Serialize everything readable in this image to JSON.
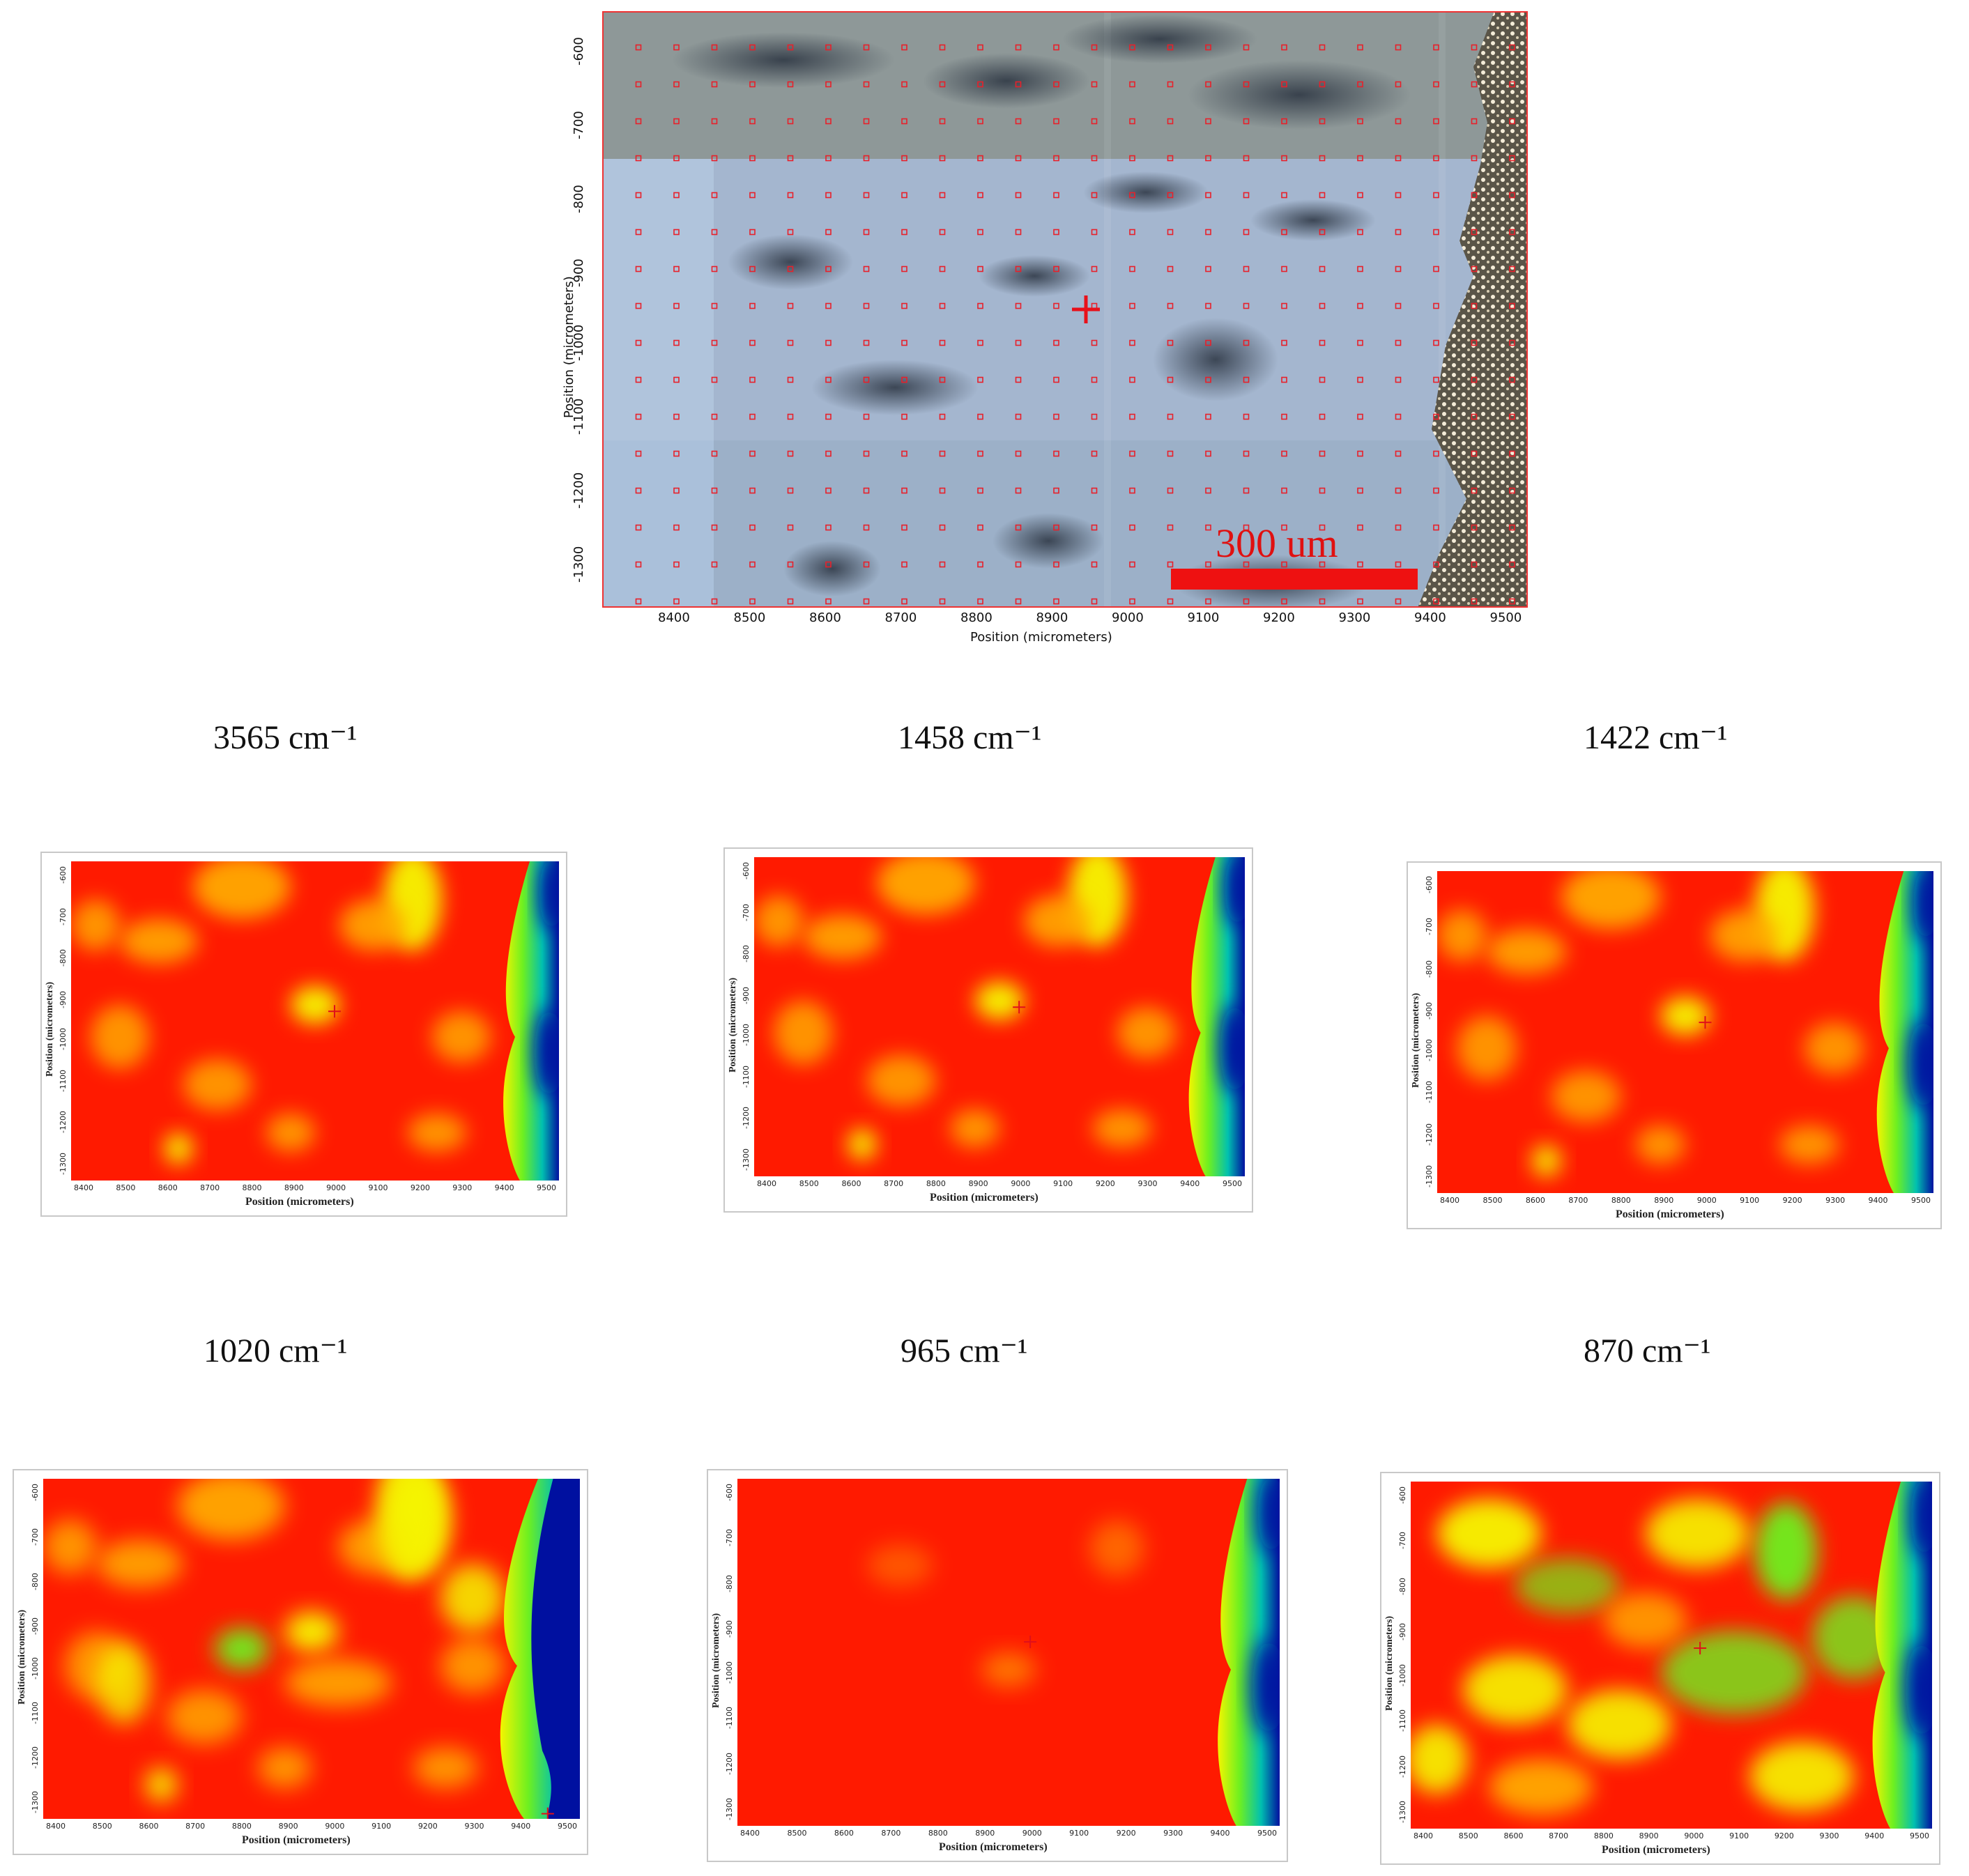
{
  "photo": {
    "y_ticks": [
      "-600",
      "-700",
      "-800",
      "-900",
      "-1000",
      "-1100",
      "-1200",
      "-1300"
    ],
    "x_ticks": [
      "8400",
      "8500",
      "8600",
      "8700",
      "8800",
      "8900",
      "9000",
      "9100",
      "9200",
      "9300",
      "9400",
      "9500"
    ],
    "xlabel": "Position (micrometers)",
    "ylabel": "Position (micrometers)",
    "scale_bar_label": "300 um",
    "colors": {
      "grid_marker": "#e8202a",
      "scale_bar": "#ee1111"
    }
  },
  "panels": [
    {
      "title": "3565 cm⁻¹",
      "xlabel": "Position (micrometers)",
      "ylabel": "Position (micrometers)",
      "x_ticks": [
        "8400",
        "8500",
        "8600",
        "8700",
        "8800",
        "8900",
        "9000",
        "9100",
        "9200",
        "9300",
        "9400",
        "9500"
      ],
      "y_ticks": [
        "-600",
        "-700",
        "-800",
        "-900",
        "-1000",
        "-1100",
        "-1200",
        "-1300"
      ]
    },
    {
      "title": "1458 cm⁻¹",
      "xlabel": "Position (micrometers)",
      "ylabel": "Position (micrometers)",
      "x_ticks": [
        "8400",
        "8500",
        "8600",
        "8700",
        "8800",
        "8900",
        "9000",
        "9100",
        "9200",
        "9300",
        "9400",
        "9500"
      ],
      "y_ticks": [
        "-600",
        "-700",
        "-800",
        "-900",
        "-1000",
        "-1100",
        "-1200",
        "-1300"
      ]
    },
    {
      "title": "1422 cm⁻¹",
      "xlabel": "Position (micrometers)",
      "ylabel": "Position (micrometers)",
      "x_ticks": [
        "8400",
        "8500",
        "8600",
        "8700",
        "8800",
        "8900",
        "9000",
        "9100",
        "9200",
        "9300",
        "9400",
        "9500"
      ],
      "y_ticks": [
        "-600",
        "-700",
        "-800",
        "-900",
        "-1000",
        "-1100",
        "-1200",
        "-1300"
      ]
    },
    {
      "title": "1020 cm⁻¹",
      "xlabel": "Position (micrometers)",
      "ylabel": "Position (micrometers)",
      "x_ticks": [
        "8400",
        "8500",
        "8600",
        "8700",
        "8800",
        "8900",
        "9000",
        "9100",
        "9200",
        "9300",
        "9400",
        "9500"
      ],
      "y_ticks": [
        "-600",
        "-700",
        "-800",
        "-900",
        "-1000",
        "-1100",
        "-1200",
        "-1300"
      ]
    },
    {
      "title": "965 cm⁻¹",
      "xlabel": "Position (micrometers)",
      "ylabel": "Position (micrometers)",
      "x_ticks": [
        "8400",
        "8500",
        "8600",
        "8700",
        "8800",
        "8900",
        "9000",
        "9100",
        "9200",
        "9300",
        "9400",
        "9500"
      ],
      "y_ticks": [
        "-600",
        "-700",
        "-800",
        "-900",
        "-1000",
        "-1100",
        "-1200",
        "-1300"
      ]
    },
    {
      "title": "870 cm⁻¹",
      "xlabel": "Position (micrometers)",
      "ylabel": "Position (micrometers)",
      "x_ticks": [
        "8400",
        "8500",
        "8600",
        "8700",
        "8800",
        "8900",
        "9000",
        "9100",
        "9200",
        "9300",
        "9400",
        "9500"
      ],
      "y_ticks": [
        "-600",
        "-700",
        "-800",
        "-900",
        "-1000",
        "-1100",
        "-1200",
        "-1300"
      ]
    }
  ],
  "colormap": {
    "high": "#ff1a00",
    "mid_high": "#ffb000",
    "mid": "#f5f500",
    "mid_low": "#6ef020",
    "low_mid": "#00c0b0",
    "low": "#0010a0"
  }
}
